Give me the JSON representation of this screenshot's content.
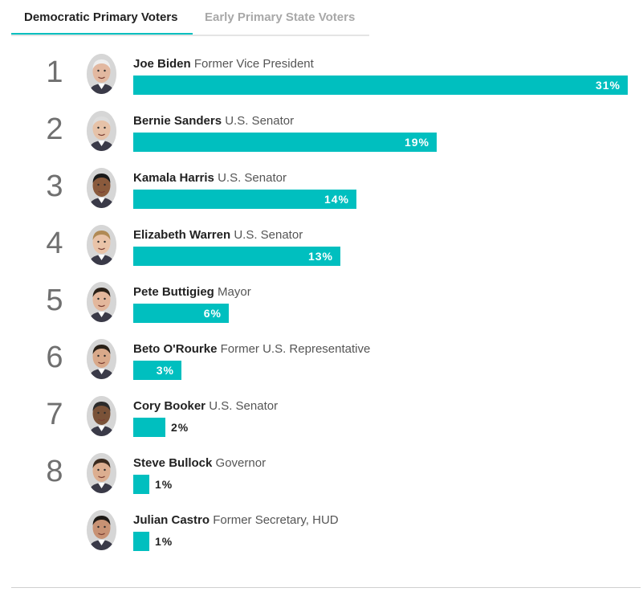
{
  "tabs": [
    {
      "label": "Democratic Primary Voters",
      "active": true
    },
    {
      "label": "Early Primary State Voters",
      "active": false
    }
  ],
  "colors": {
    "bar": "#00bfbf",
    "active_tab_underline": "#00bfbf"
  },
  "chart_data": {
    "type": "bar",
    "orientation": "horizontal",
    "unit": "%",
    "xlim": [
      0,
      31
    ],
    "candidates": [
      {
        "rank": "1",
        "name": "Joe Biden",
        "title": "Former Vice President",
        "value": 31,
        "value_label": "31%",
        "avatar": "joe-biden-photo"
      },
      {
        "rank": "2",
        "name": "Bernie Sanders",
        "title": "U.S. Senator",
        "value": 19,
        "value_label": "19%",
        "avatar": "bernie-sanders-photo"
      },
      {
        "rank": "3",
        "name": "Kamala Harris",
        "title": "U.S. Senator",
        "value": 14,
        "value_label": "14%",
        "avatar": "kamala-harris-photo"
      },
      {
        "rank": "4",
        "name": "Elizabeth Warren",
        "title": "U.S. Senator",
        "value": 13,
        "value_label": "13%",
        "avatar": "elizabeth-warren-photo"
      },
      {
        "rank": "5",
        "name": "Pete Buttigieg",
        "title": "Mayor",
        "value": 6,
        "value_label": "6%",
        "avatar": "pete-buttigieg-photo"
      },
      {
        "rank": "6",
        "name": "Beto O'Rourke",
        "title": "Former U.S. Representative",
        "value": 3,
        "value_label": "3%",
        "avatar": "beto-orourke-photo"
      },
      {
        "rank": "7",
        "name": "Cory Booker",
        "title": "U.S. Senator",
        "value": 2,
        "value_label": "2%",
        "avatar": "cory-booker-photo"
      },
      {
        "rank": "8",
        "name": "Steve Bullock",
        "title": "Governor",
        "value": 1,
        "value_label": "1%",
        "avatar": "steve-bullock-photo"
      },
      {
        "rank": "",
        "name": "Julian Castro",
        "title": "Former Secretary, HUD",
        "value": 1,
        "value_label": "1%",
        "avatar": "julian-castro-photo"
      }
    ]
  }
}
